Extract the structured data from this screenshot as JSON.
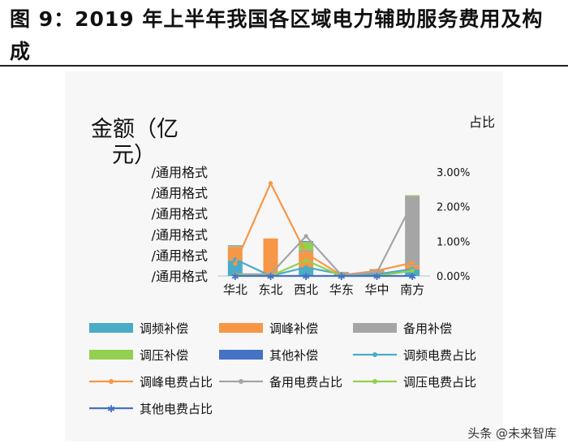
{
  "title": "图 9：2019 年上半年我国各区域电力辅助服务费用及构成",
  "watermark": "头条 @未来智库",
  "chart_data": {
    "type": "bar",
    "left_axis_title": "金额（亿元）",
    "right_axis_title": "占比",
    "left_tick_labels": [
      "/通用格式",
      "/通用格式",
      "/通用格式",
      "/通用格式",
      "/通用格式",
      "/通用格式"
    ],
    "right_tick_labels": [
      "0.00%",
      "1.00%",
      "2.00%",
      "3.00%"
    ],
    "right_ylim": [
      0,
      0.03
    ],
    "categories": [
      "华北",
      "东北",
      "西北",
      "华东",
      "华中",
      "南方"
    ],
    "bar_series": [
      {
        "name": "调频补偿",
        "color": "#4bacc6",
        "values": [
          0.45,
          0.0,
          0.25,
          0.05,
          0.05,
          0.2
        ]
      },
      {
        "name": "调峰补偿",
        "color": "#f79646",
        "values": [
          0.4,
          1.1,
          0.45,
          0.05,
          0.08,
          0.1
        ]
      },
      {
        "name": "备用补偿",
        "color": "#a5a5a5",
        "values": [
          0.02,
          0.0,
          0.05,
          0.02,
          0.07,
          2.05
        ]
      },
      {
        "name": "调压补偿",
        "color": "#92d050",
        "values": [
          0.02,
          0.0,
          0.25,
          0.0,
          0.0,
          0.02
        ]
      },
      {
        "name": "其他补偿",
        "color": "#4472c4",
        "values": [
          0.01,
          0.0,
          0.02,
          0.0,
          0.0,
          0.0
        ]
      }
    ],
    "line_series": [
      {
        "name": "调频电费占比",
        "color": "#4bacc6",
        "marker": "dot",
        "values": [
          0.0048,
          0.0,
          0.0025,
          0.0005,
          0.0005,
          0.002
        ]
      },
      {
        "name": "调峰电费占比",
        "color": "#f79646",
        "marker": "dot",
        "values": [
          0.0035,
          0.0268,
          0.0065,
          0.0002,
          0.0015,
          0.0038
        ]
      },
      {
        "name": "备用电费占比",
        "color": "#a5a5a5",
        "marker": "dot",
        "values": [
          0.0005,
          0.0005,
          0.0115,
          0.0002,
          0.001,
          0.021
        ]
      },
      {
        "name": "调压电费占比",
        "color": "#92d050",
        "marker": "dot",
        "values": [
          0.0003,
          0.0,
          0.0045,
          0.0,
          0.0,
          0.0015
        ]
      },
      {
        "name": "其他电费占比",
        "color": "#4472c4",
        "marker": "star",
        "values": [
          0.0,
          0.0,
          0.0,
          0.0,
          0.0,
          0.0
        ]
      }
    ]
  }
}
